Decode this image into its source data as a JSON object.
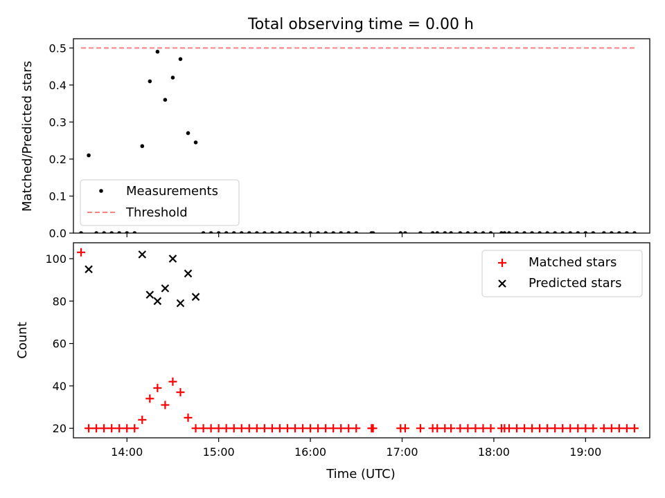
{
  "chart_data": [
    {
      "type": "scatter",
      "title": "Total observing time = 0.00 h",
      "xlabel": "",
      "ylabel": "Matched/Predicted stars",
      "xlim": [
        "13:25",
        "19:42"
      ],
      "ylim": [
        0,
        0.525
      ],
      "yticks": [
        "0.0",
        "0.1",
        "0.2",
        "0.3",
        "0.4",
        "0.5"
      ],
      "xtick_labels_shown": false,
      "legend": {
        "placement": "lower-left",
        "entries": [
          "Measurements",
          "Threshold"
        ]
      },
      "series": [
        {
          "name": "Measurements",
          "marker": "dot",
          "color": "#000000",
          "points": [
            [
              "13:30",
              0.0
            ],
            [
              "13:35",
              0.21
            ],
            [
              "13:40",
              0.0
            ],
            [
              "13:45",
              0.0
            ],
            [
              "13:50",
              0.0
            ],
            [
              "13:55",
              0.0
            ],
            [
              "14:00",
              0.0
            ],
            [
              "14:05",
              0.0
            ],
            [
              "14:10",
              0.235
            ],
            [
              "14:15",
              0.41
            ],
            [
              "14:20",
              0.49
            ],
            [
              "14:25",
              0.36
            ],
            [
              "14:30",
              0.42
            ],
            [
              "14:35",
              0.47
            ],
            [
              "14:40",
              0.27
            ],
            [
              "14:45",
              0.245
            ],
            [
              "14:50",
              0.0
            ],
            [
              "14:55",
              0.0
            ],
            [
              "15:00",
              0.0
            ],
            [
              "15:05",
              0.0
            ],
            [
              "15:10",
              0.0
            ],
            [
              "15:15",
              0.0
            ],
            [
              "15:20",
              0.0
            ],
            [
              "15:25",
              0.0
            ],
            [
              "15:30",
              0.0
            ],
            [
              "15:35",
              0.0
            ],
            [
              "15:40",
              0.0
            ],
            [
              "15:45",
              0.0
            ],
            [
              "15:50",
              0.0
            ],
            [
              "15:55",
              0.0
            ],
            [
              "16:00",
              0.0
            ],
            [
              "16:05",
              0.0
            ],
            [
              "16:10",
              0.0
            ],
            [
              "16:15",
              0.0
            ],
            [
              "16:20",
              0.0
            ],
            [
              "16:25",
              0.0
            ],
            [
              "16:30",
              0.0
            ],
            [
              "16:40",
              0.0
            ],
            [
              "16:41",
              0.0
            ],
            [
              "16:59",
              0.0
            ],
            [
              "17:02",
              0.0
            ],
            [
              "17:12",
              0.0
            ],
            [
              "17:20",
              0.0
            ],
            [
              "17:23",
              0.0
            ],
            [
              "17:28",
              0.0
            ],
            [
              "17:32",
              0.0
            ],
            [
              "17:38",
              0.0
            ],
            [
              "17:43",
              0.0
            ],
            [
              "17:48",
              0.0
            ],
            [
              "17:53",
              0.0
            ],
            [
              "17:58",
              0.0
            ],
            [
              "18:05",
              0.0
            ],
            [
              "18:07",
              0.0
            ],
            [
              "18:10",
              0.0
            ],
            [
              "18:15",
              0.0
            ],
            [
              "18:20",
              0.0
            ],
            [
              "18:25",
              0.0
            ],
            [
              "18:30",
              0.0
            ],
            [
              "18:35",
              0.0
            ],
            [
              "18:40",
              0.0
            ],
            [
              "18:45",
              0.0
            ],
            [
              "18:50",
              0.0
            ],
            [
              "18:55",
              0.0
            ],
            [
              "19:00",
              0.0
            ],
            [
              "19:05",
              0.0
            ],
            [
              "19:12",
              0.0
            ],
            [
              "19:17",
              0.0
            ],
            [
              "19:22",
              0.0
            ],
            [
              "19:27",
              0.0
            ],
            [
              "19:32",
              0.0
            ]
          ]
        },
        {
          "name": "Threshold",
          "style": "dashed-line",
          "color": "#ff7f7f",
          "points": [
            [
              "13:30",
              0.5
            ],
            [
              "19:32",
              0.5
            ]
          ]
        }
      ]
    },
    {
      "type": "scatter",
      "title": "",
      "xlabel": "Time (UTC)",
      "ylabel": "Count",
      "xlim": [
        "13:25",
        "19:42"
      ],
      "ylim": [
        15.5,
        107.5
      ],
      "yticks": [
        "20",
        "40",
        "60",
        "80",
        "100"
      ],
      "xticks": [
        "14:00",
        "15:00",
        "16:00",
        "17:00",
        "18:00",
        "19:00"
      ],
      "legend": {
        "placement": "top-right",
        "entries": [
          "Matched stars",
          "Predicted stars"
        ]
      },
      "series": [
        {
          "name": "Matched stars",
          "marker": "plus",
          "color": "#ff0000",
          "points": [
            [
              "13:30",
              103
            ],
            [
              "13:35",
              20
            ],
            [
              "13:40",
              20
            ],
            [
              "13:45",
              20
            ],
            [
              "13:50",
              20
            ],
            [
              "13:55",
              20
            ],
            [
              "14:00",
              20
            ],
            [
              "14:05",
              20
            ],
            [
              "14:10",
              24
            ],
            [
              "14:15",
              34
            ],
            [
              "14:20",
              39
            ],
            [
              "14:25",
              31
            ],
            [
              "14:30",
              42
            ],
            [
              "14:35",
              37
            ],
            [
              "14:40",
              25
            ],
            [
              "14:45",
              20
            ],
            [
              "14:50",
              20
            ],
            [
              "14:55",
              20
            ],
            [
              "15:00",
              20
            ],
            [
              "15:05",
              20
            ],
            [
              "15:10",
              20
            ],
            [
              "15:15",
              20
            ],
            [
              "15:20",
              20
            ],
            [
              "15:25",
              20
            ],
            [
              "15:30",
              20
            ],
            [
              "15:35",
              20
            ],
            [
              "15:40",
              20
            ],
            [
              "15:45",
              20
            ],
            [
              "15:50",
              20
            ],
            [
              "15:55",
              20
            ],
            [
              "16:00",
              20
            ],
            [
              "16:05",
              20
            ],
            [
              "16:10",
              20
            ],
            [
              "16:15",
              20
            ],
            [
              "16:20",
              20
            ],
            [
              "16:25",
              20
            ],
            [
              "16:30",
              20
            ],
            [
              "16:40",
              20
            ],
            [
              "16:41",
              20
            ],
            [
              "16:59",
              20
            ],
            [
              "17:02",
              20
            ],
            [
              "17:12",
              20
            ],
            [
              "17:20",
              20
            ],
            [
              "17:23",
              20
            ],
            [
              "17:28",
              20
            ],
            [
              "17:32",
              20
            ],
            [
              "17:38",
              20
            ],
            [
              "17:43",
              20
            ],
            [
              "17:48",
              20
            ],
            [
              "17:53",
              20
            ],
            [
              "17:58",
              20
            ],
            [
              "18:05",
              20
            ],
            [
              "18:07",
              20
            ],
            [
              "18:10",
              20
            ],
            [
              "18:15",
              20
            ],
            [
              "18:20",
              20
            ],
            [
              "18:25",
              20
            ],
            [
              "18:30",
              20
            ],
            [
              "18:35",
              20
            ],
            [
              "18:40",
              20
            ],
            [
              "18:45",
              20
            ],
            [
              "18:50",
              20
            ],
            [
              "18:55",
              20
            ],
            [
              "19:00",
              20
            ],
            [
              "19:05",
              20
            ],
            [
              "19:12",
              20
            ],
            [
              "19:17",
              20
            ],
            [
              "19:22",
              20
            ],
            [
              "19:27",
              20
            ],
            [
              "19:32",
              20
            ]
          ]
        },
        {
          "name": "Predicted stars",
          "marker": "x",
          "color": "#000000",
          "points": [
            [
              "13:35",
              95
            ],
            [
              "14:10",
              102
            ],
            [
              "14:15",
              83
            ],
            [
              "14:20",
              80
            ],
            [
              "14:25",
              86
            ],
            [
              "14:30",
              100
            ],
            [
              "14:35",
              79
            ],
            [
              "14:40",
              93
            ],
            [
              "14:45",
              82
            ]
          ]
        }
      ]
    }
  ]
}
